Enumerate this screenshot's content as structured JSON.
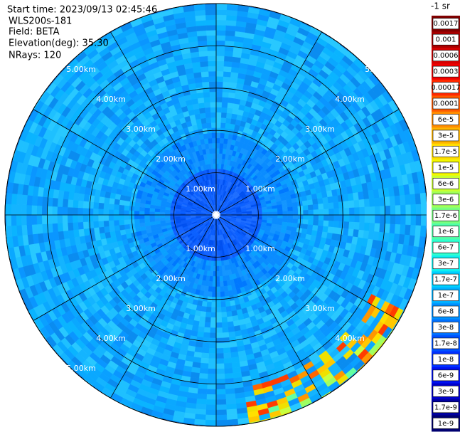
{
  "header": {
    "start_time": "Start time: 2023/09/13 02:45:46",
    "station": "WLS200s-181",
    "field": "Field: BETA",
    "elevation": "Elevation(deg): 35.30",
    "nrays": "NRays: 120"
  },
  "rings": [
    "1.00km",
    "2.00km",
    "3.00km",
    "4.00km",
    "5.00km"
  ],
  "colorbar": {
    "unit": "-1 sr",
    "levels": [
      {
        "label": "0.0017",
        "color": "#800000"
      },
      {
        "label": "0.001",
        "color": "#a80000"
      },
      {
        "label": "0.0006",
        "color": "#d40000"
      },
      {
        "label": "0.0003",
        "color": "#f00000"
      },
      {
        "label": "0.00017",
        "color": "#ff2800"
      },
      {
        "label": "0.0001",
        "color": "#ff5a00"
      },
      {
        "label": "6e-5",
        "color": "#ff8c00"
      },
      {
        "label": "3e-5",
        "color": "#ffb400"
      },
      {
        "label": "1.7e-5",
        "color": "#ffdc00"
      },
      {
        "label": "1e-5",
        "color": "#f4f800"
      },
      {
        "label": "6e-6",
        "color": "#c8ff30"
      },
      {
        "label": "3e-6",
        "color": "#a0ff5a"
      },
      {
        "label": "1.7e-6",
        "color": "#78ff80"
      },
      {
        "label": "1e-6",
        "color": "#50ffa8"
      },
      {
        "label": "6e-7",
        "color": "#30ffd0"
      },
      {
        "label": "3e-7",
        "color": "#10f0f0"
      },
      {
        "label": "1.7e-7",
        "color": "#00d0ff"
      },
      {
        "label": "1e-7",
        "color": "#00b0ff"
      },
      {
        "label": "6e-8",
        "color": "#0090ff"
      },
      {
        "label": "3e-8",
        "color": "#0070ff"
      },
      {
        "label": "1.7e-8",
        "color": "#0050ff"
      },
      {
        "label": "1e-8",
        "color": "#0030ff"
      },
      {
        "label": "6e-9",
        "color": "#0010f0"
      },
      {
        "label": "3e-9",
        "color": "#0000c8"
      },
      {
        "label": "1.7e-9",
        "color": "#0000a0"
      },
      {
        "label": "1e-9",
        "color": "#000070"
      }
    ]
  }
}
